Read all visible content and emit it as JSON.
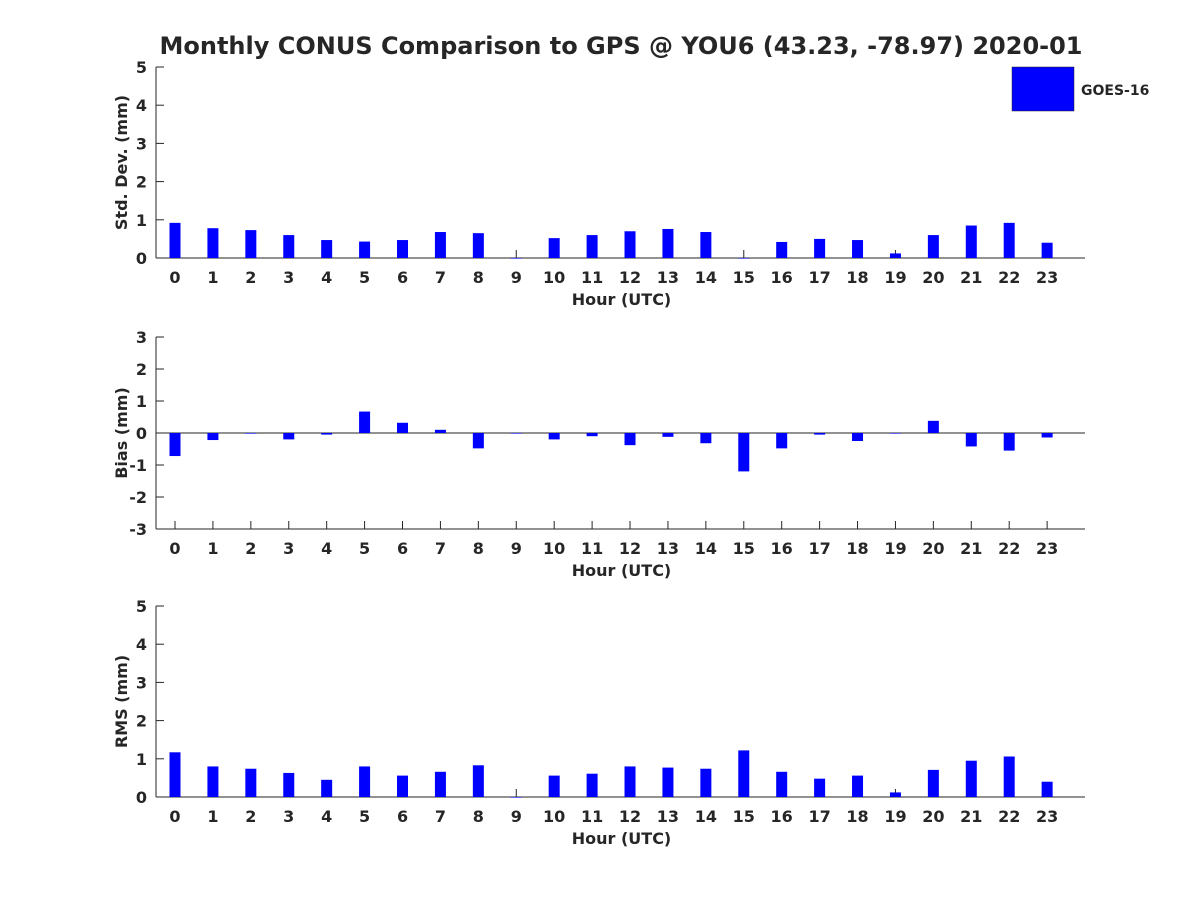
{
  "chart_data": {
    "type": "bar",
    "title": "Monthly CONUS Comparison to GPS @ YOU6 (43.23, -78.97) 2020-01",
    "legend": {
      "label": "GOES-16",
      "color": "#0000ff",
      "placement": "top-right"
    },
    "categories": [
      "0",
      "1",
      "2",
      "3",
      "4",
      "5",
      "6",
      "7",
      "8",
      "9",
      "10",
      "11",
      "12",
      "13",
      "14",
      "15",
      "16",
      "17",
      "18",
      "19",
      "20",
      "21",
      "22",
      "23"
    ],
    "panels": [
      {
        "ylabel": "Std. Dev. (mm)",
        "xlabel": "Hour (UTC)",
        "ylim": [
          0,
          5
        ],
        "yticks": [
          "0",
          "1",
          "2",
          "3",
          "4",
          "5"
        ],
        "series": [
          {
            "name": "GOES-16",
            "values": [
              0.92,
              0.78,
              0.73,
              0.6,
              0.47,
              0.43,
              0.47,
              0.68,
              0.65,
              0.0,
              0.52,
              0.6,
              0.7,
              0.76,
              0.68,
              0.0,
              0.42,
              0.5,
              0.47,
              0.12,
              0.6,
              0.85,
              0.92,
              0.4
            ]
          }
        ]
      },
      {
        "ylabel": "Bias (mm)",
        "xlabel": "Hour (UTC)",
        "ylim": [
          -3,
          3
        ],
        "yticks": [
          "-3",
          "-2",
          "-1",
          "0",
          "1",
          "2",
          "3"
        ],
        "series": [
          {
            "name": "GOES-16",
            "values": [
              -0.72,
              -0.22,
              -0.02,
              -0.2,
              -0.05,
              0.67,
              0.32,
              0.1,
              -0.48,
              0.0,
              -0.2,
              -0.1,
              -0.38,
              -0.12,
              -0.32,
              -1.2,
              -0.48,
              -0.05,
              -0.25,
              0.0,
              0.38,
              -0.42,
              -0.55,
              -0.14
            ]
          }
        ]
      },
      {
        "ylabel": "RMS (mm)",
        "xlabel": "Hour (UTC)",
        "ylim": [
          0,
          5
        ],
        "yticks": [
          "0",
          "1",
          "2",
          "3",
          "4",
          "5"
        ],
        "series": [
          {
            "name": "GOES-16",
            "values": [
              1.17,
              0.8,
              0.74,
              0.63,
              0.45,
              0.8,
              0.56,
              0.66,
              0.83,
              0.0,
              0.56,
              0.61,
              0.8,
              0.77,
              0.74,
              1.22,
              0.66,
              0.48,
              0.56,
              0.12,
              0.71,
              0.95,
              1.06,
              0.4
            ]
          }
        ]
      }
    ]
  }
}
